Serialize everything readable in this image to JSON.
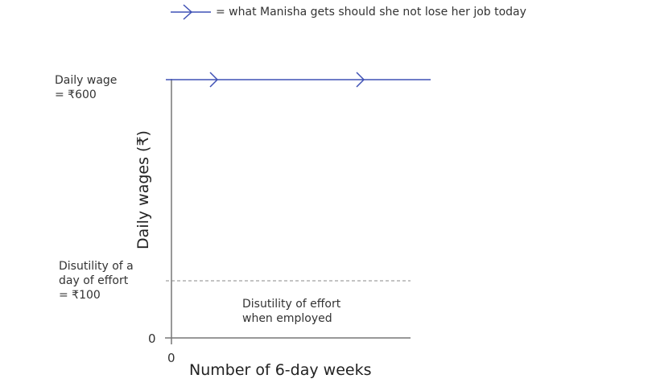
{
  "chart_data": {
    "type": "line",
    "title": "",
    "xlabel": "Number of 6-day weeks",
    "ylabel": "Daily wages (₹)",
    "x_ticks": [
      "0"
    ],
    "y_ticks": [
      "0"
    ],
    "legend": {
      "text": "= what Manisha gets should she not lose her job today",
      "placement": "top"
    },
    "series": [
      {
        "name": "Daily wage",
        "value": 600,
        "label_line1": "Daily wage",
        "label_line2": "= ₹600",
        "style": "solid-with-arrows",
        "color": "#3f51b5"
      },
      {
        "name": "Disutility of a day of effort",
        "value": 100,
        "label_line1": "Disutility of a",
        "label_line2": "day of effort",
        "label_line3": "= ₹100",
        "style": "dashed",
        "color": "#888888"
      }
    ],
    "annotations": [
      {
        "line1": "Disutility of effort",
        "line2": "when employed"
      }
    ]
  }
}
